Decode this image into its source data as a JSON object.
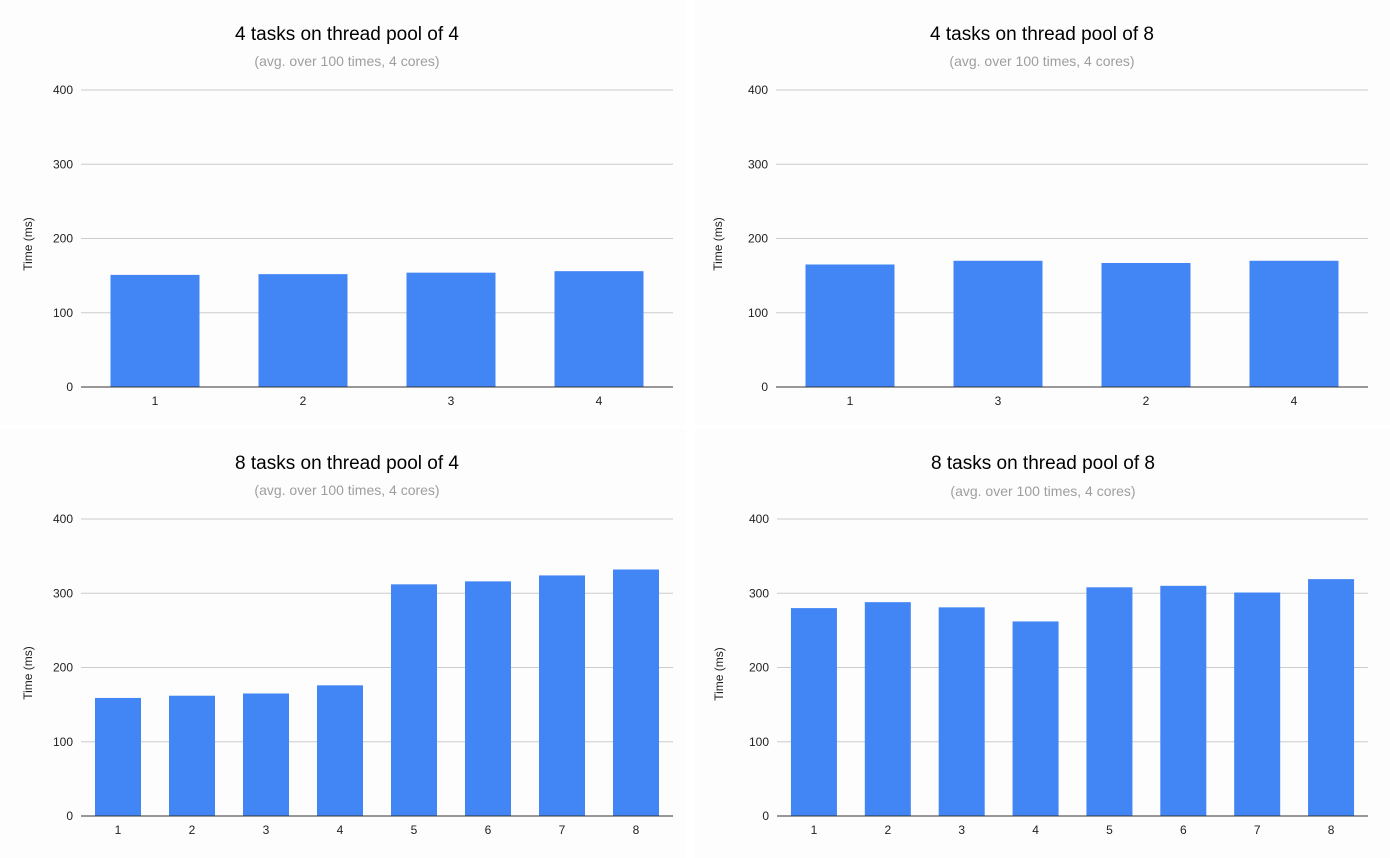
{
  "colors": {
    "bar": "#4285f4",
    "grid": "#cccccc",
    "axis": "#333333",
    "title": "#000000",
    "subtitle": "#9e9e9e"
  },
  "chart_data": [
    {
      "type": "bar",
      "title": "4 tasks on thread pool of 4",
      "subtitle": "(avg. over 100 times, 4 cores)",
      "xlabel": "",
      "ylabel": "Time (ms)",
      "ylim": [
        0,
        400
      ],
      "yticks": [
        "0",
        "100",
        "200",
        "300",
        "400"
      ],
      "categories": [
        "1",
        "2",
        "3",
        "4"
      ],
      "values": [
        151,
        152,
        154,
        156
      ],
      "grid": true
    },
    {
      "type": "bar",
      "title": "4 tasks on thread pool of 8",
      "subtitle": "(avg. over 100 times, 4 cores)",
      "xlabel": "",
      "ylabel": "Time (ms)",
      "ylim": [
        0,
        400
      ],
      "yticks": [
        "0",
        "100",
        "200",
        "300",
        "400"
      ],
      "categories": [
        "1",
        "3",
        "2",
        "4"
      ],
      "values": [
        165,
        170,
        167,
        170
      ],
      "grid": true
    },
    {
      "type": "bar",
      "title": "8 tasks on thread pool of 4",
      "subtitle": "(avg. over 100 times, 4 cores)",
      "xlabel": "",
      "ylabel": "Time (ms)",
      "ylim": [
        0,
        400
      ],
      "yticks": [
        "0",
        "100",
        "200",
        "300",
        "400"
      ],
      "categories": [
        "1",
        "2",
        "3",
        "4",
        "5",
        "6",
        "7",
        "8"
      ],
      "values": [
        159,
        162,
        165,
        176,
        312,
        316,
        324,
        332
      ],
      "grid": true
    },
    {
      "type": "bar",
      "title": "8 tasks on thread pool of 8",
      "subtitle": "(avg. over 100 times, 4 cores)",
      "xlabel": "",
      "ylabel": "Time (ms)",
      "ylim": [
        0,
        400
      ],
      "yticks": [
        "0",
        "100",
        "200",
        "300",
        "400"
      ],
      "categories": [
        "1",
        "2",
        "3",
        "4",
        "5",
        "6",
        "7",
        "8"
      ],
      "values": [
        280,
        288,
        281,
        262,
        308,
        310,
        301,
        319
      ],
      "grid": true
    }
  ]
}
